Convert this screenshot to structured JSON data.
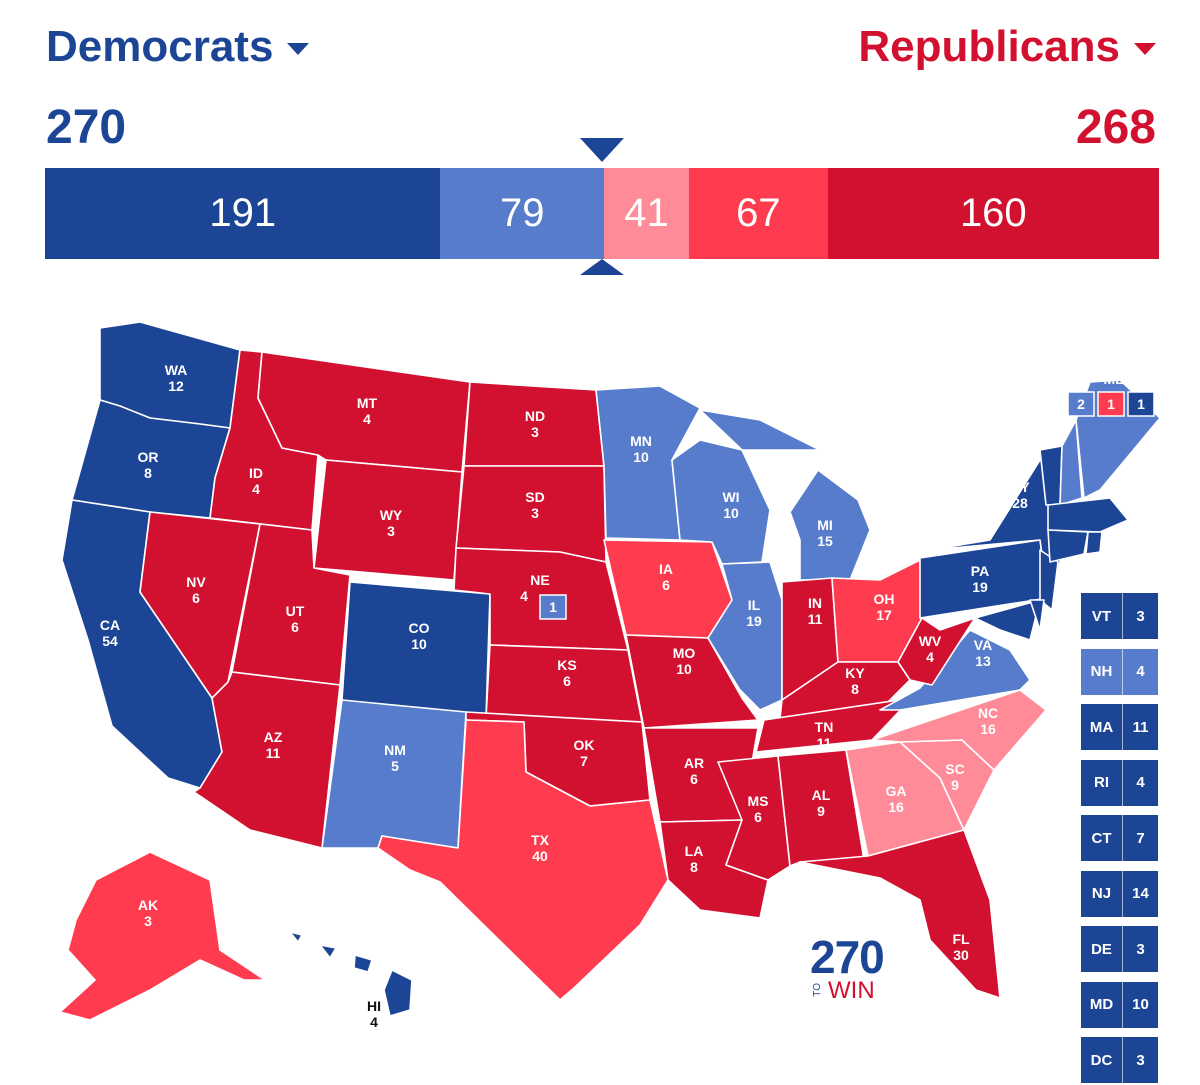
{
  "header": {
    "dem_label": "Democrats",
    "rep_label": "Republicans",
    "dem_total": "270",
    "rep_total": "268"
  },
  "bar": [
    {
      "value": "191",
      "votes": 191,
      "color": "#1c4596",
      "category": "safe-dem"
    },
    {
      "value": "79",
      "votes": 79,
      "color": "#577ccc",
      "category": "likely-dem"
    },
    {
      "value": "41",
      "votes": 41,
      "color": "#ff8b98",
      "category": "lean-rep"
    },
    {
      "value": "67",
      "votes": 67,
      "color": "#ff3c4f",
      "category": "likely-rep"
    },
    {
      "value": "160",
      "votes": 160,
      "color": "#d21030",
      "category": "safe-rep"
    }
  ],
  "colors": {
    "safe-dem": "#1c4596",
    "likely-dem": "#577ccc",
    "lean-rep": "#ff8b98",
    "likely-rep": "#ff3c4f",
    "safe-rep": "#d21030"
  },
  "states": [
    {
      "abbr": "WA",
      "votes": "12",
      "cat": "safe-dem"
    },
    {
      "abbr": "OR",
      "votes": "8",
      "cat": "safe-dem"
    },
    {
      "abbr": "CA",
      "votes": "54",
      "cat": "safe-dem"
    },
    {
      "abbr": "ID",
      "votes": "4",
      "cat": "safe-rep"
    },
    {
      "abbr": "NV",
      "votes": "6",
      "cat": "safe-rep"
    },
    {
      "abbr": "MT",
      "votes": "4",
      "cat": "safe-rep"
    },
    {
      "abbr": "WY",
      "votes": "3",
      "cat": "safe-rep"
    },
    {
      "abbr": "UT",
      "votes": "6",
      "cat": "safe-rep"
    },
    {
      "abbr": "AZ",
      "votes": "11",
      "cat": "safe-rep"
    },
    {
      "abbr": "CO",
      "votes": "10",
      "cat": "safe-dem"
    },
    {
      "abbr": "NM",
      "votes": "5",
      "cat": "likely-dem"
    },
    {
      "abbr": "ND",
      "votes": "3",
      "cat": "safe-rep"
    },
    {
      "abbr": "SD",
      "votes": "3",
      "cat": "safe-rep"
    },
    {
      "abbr": "NE",
      "votes": "4",
      "cat": "safe-rep"
    },
    {
      "abbr": "KS",
      "votes": "6",
      "cat": "safe-rep"
    },
    {
      "abbr": "OK",
      "votes": "7",
      "cat": "safe-rep"
    },
    {
      "abbr": "TX",
      "votes": "40",
      "cat": "likely-rep"
    },
    {
      "abbr": "MN",
      "votes": "10",
      "cat": "likely-dem"
    },
    {
      "abbr": "IA",
      "votes": "6",
      "cat": "likely-rep"
    },
    {
      "abbr": "MO",
      "votes": "10",
      "cat": "safe-rep"
    },
    {
      "abbr": "AR",
      "votes": "6",
      "cat": "safe-rep"
    },
    {
      "abbr": "LA",
      "votes": "8",
      "cat": "safe-rep"
    },
    {
      "abbr": "WI",
      "votes": "10",
      "cat": "likely-dem"
    },
    {
      "abbr": "IL",
      "votes": "19",
      "cat": "likely-dem"
    },
    {
      "abbr": "MI",
      "votes": "15",
      "cat": "likely-dem"
    },
    {
      "abbr": "IN",
      "votes": "11",
      "cat": "safe-rep"
    },
    {
      "abbr": "OH",
      "votes": "17",
      "cat": "likely-rep"
    },
    {
      "abbr": "KY",
      "votes": "8",
      "cat": "safe-rep"
    },
    {
      "abbr": "TN",
      "votes": "11",
      "cat": "safe-rep"
    },
    {
      "abbr": "MS",
      "votes": "6",
      "cat": "safe-rep"
    },
    {
      "abbr": "AL",
      "votes": "9",
      "cat": "safe-rep"
    },
    {
      "abbr": "GA",
      "votes": "16",
      "cat": "lean-rep"
    },
    {
      "abbr": "FL",
      "votes": "30",
      "cat": "safe-rep"
    },
    {
      "abbr": "SC",
      "votes": "9",
      "cat": "lean-rep"
    },
    {
      "abbr": "NC",
      "votes": "16",
      "cat": "lean-rep"
    },
    {
      "abbr": "VA",
      "votes": "13",
      "cat": "likely-dem"
    },
    {
      "abbr": "WV",
      "votes": "4",
      "cat": "safe-rep"
    },
    {
      "abbr": "PA",
      "votes": "19",
      "cat": "safe-dem"
    },
    {
      "abbr": "NY",
      "votes": "28",
      "cat": "safe-dem"
    },
    {
      "abbr": "AK",
      "votes": "3",
      "cat": "likely-rep"
    },
    {
      "abbr": "HI",
      "votes": "4",
      "cat": "safe-dem"
    }
  ],
  "ne_district": "1",
  "me": {
    "label": "ME",
    "d1": "2",
    "d2": "1",
    "d3": "1"
  },
  "small_states": [
    {
      "abbr": "VT",
      "votes": "3",
      "cat": "safe-dem"
    },
    {
      "abbr": "NH",
      "votes": "4",
      "cat": "likely-dem"
    },
    {
      "abbr": "MA",
      "votes": "11",
      "cat": "safe-dem"
    },
    {
      "abbr": "RI",
      "votes": "4",
      "cat": "safe-dem"
    },
    {
      "abbr": "CT",
      "votes": "7",
      "cat": "safe-dem"
    },
    {
      "abbr": "NJ",
      "votes": "14",
      "cat": "safe-dem"
    },
    {
      "abbr": "DE",
      "votes": "3",
      "cat": "safe-dem"
    },
    {
      "abbr": "MD",
      "votes": "10",
      "cat": "safe-dem"
    },
    {
      "abbr": "DC",
      "votes": "3",
      "cat": "safe-dem"
    }
  ],
  "logo": {
    "num": "270",
    "to": "TO",
    "win": "WIN"
  }
}
